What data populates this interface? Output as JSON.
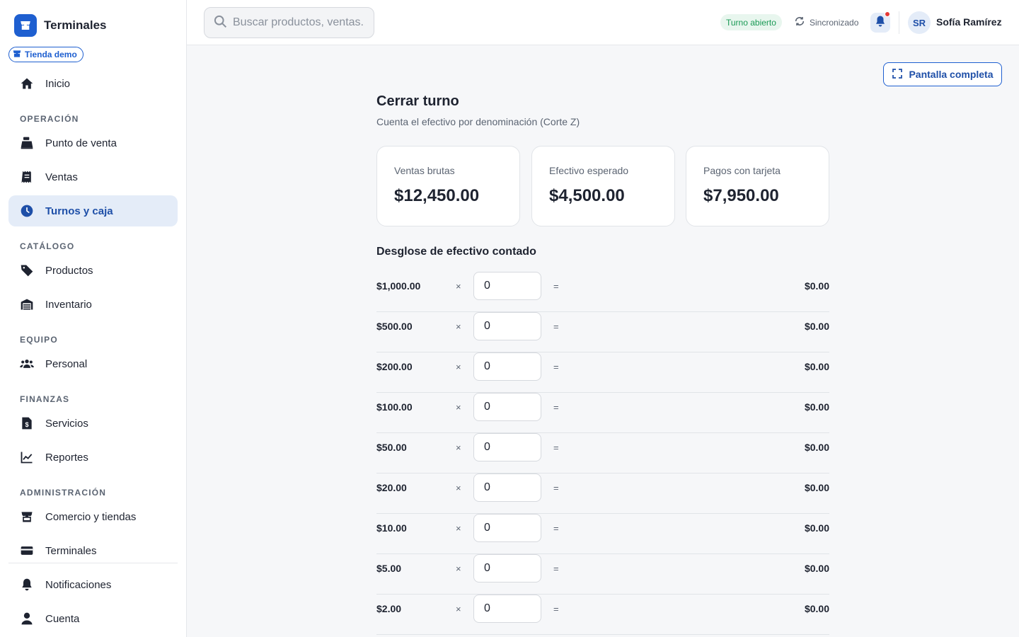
{
  "app": {
    "name": "Terminales",
    "store": "Tienda demo"
  },
  "nav": {
    "inicio": "Inicio",
    "sections": {
      "operacion": "OPERACIÓN",
      "catalogo": "CATÁLOGO",
      "equipo": "EQUIPO",
      "finanzas": "FINANZAS",
      "administracion": "ADMINISTRACIÓN"
    },
    "items": {
      "punto_venta": "Punto de venta",
      "ventas": "Ventas",
      "turnos": "Turnos y caja",
      "productos": "Productos",
      "inventario": "Inventario",
      "personal": "Personal",
      "servicios": "Servicios",
      "reportes": "Reportes",
      "comercio": "Comercio y tiendas",
      "terminales": "Terminales",
      "notificaciones": "Notificaciones",
      "cuenta": "Cuenta"
    }
  },
  "header": {
    "search_placeholder": "Buscar productos, ventas...",
    "search_value": "",
    "shift_status": "Turno abierto",
    "sync_status": "Sincronizado",
    "user_initials": "SR",
    "user_name": "Sofía Ramírez"
  },
  "main": {
    "fullscreen_label": "Pantalla completa",
    "title": "Cerrar turno",
    "subtitle": "Cuenta el efectivo por denominación (Corte Z)",
    "stats": {
      "gross_label": "Ventas brutas",
      "gross_value": "$12,450.00",
      "expected_label": "Efectivo esperado",
      "expected_value": "$4,500.00",
      "card_label": "Pagos con tarjeta",
      "card_value": "$7,950.00"
    },
    "breakdown_title": "Desglose de efectivo contado",
    "times_symbol": "×",
    "equals_symbol": "=",
    "denominations": [
      {
        "label": "$1,000.00",
        "qty": "0",
        "subtotal": "$0.00"
      },
      {
        "label": "$500.00",
        "qty": "0",
        "subtotal": "$0.00"
      },
      {
        "label": "$200.00",
        "qty": "0",
        "subtotal": "$0.00"
      },
      {
        "label": "$100.00",
        "qty": "0",
        "subtotal": "$0.00"
      },
      {
        "label": "$50.00",
        "qty": "0",
        "subtotal": "$0.00"
      },
      {
        "label": "$20.00",
        "qty": "0",
        "subtotal": "$0.00"
      },
      {
        "label": "$10.00",
        "qty": "0",
        "subtotal": "$0.00"
      },
      {
        "label": "$5.00",
        "qty": "0",
        "subtotal": "$0.00"
      },
      {
        "label": "$2.00",
        "qty": "0",
        "subtotal": "$0.00"
      }
    ]
  },
  "colors": {
    "accent": "#1e5fd0",
    "active_bg": "#e4ecf8",
    "success": "#1a9a55",
    "alert": "#e53935"
  }
}
